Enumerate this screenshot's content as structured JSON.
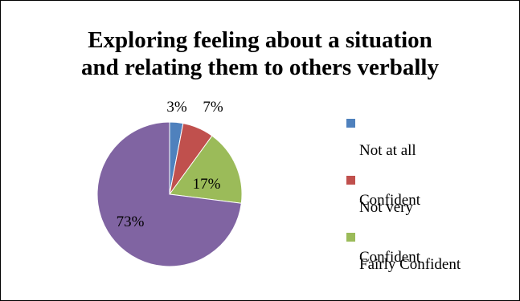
{
  "chart_data": {
    "type": "pie",
    "title_lines": [
      "Exploring feeling about a situation",
      "and relating them to others verbally"
    ],
    "slices": [
      {
        "label_lines": [
          "Not at all",
          "Confident"
        ],
        "value": 3,
        "data_label": "3%",
        "color": "#4f81bd"
      },
      {
        "label_lines": [
          "Not very",
          "Confident"
        ],
        "value": 7,
        "data_label": "7%",
        "color": "#c0504d"
      },
      {
        "label_lines": [
          "Fairly Confident"
        ],
        "value": 17,
        "data_label": "17%",
        "color": "#9bbb59"
      },
      {
        "label_lines": [],
        "value": 73,
        "data_label": "73%",
        "color": "#8064a2"
      }
    ],
    "legend_position": "right"
  }
}
